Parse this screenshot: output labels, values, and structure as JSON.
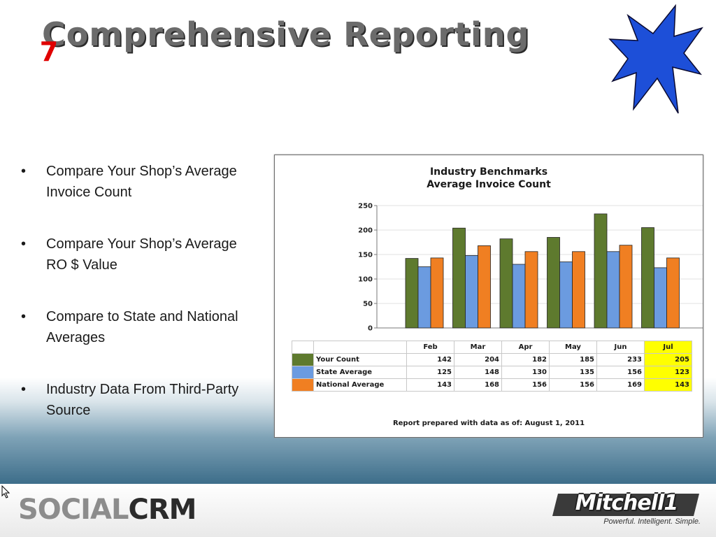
{
  "slide": {
    "title": "Comprehensive Reporting",
    "badge": "7",
    "bullets": [
      {
        "text": "Compare Your Shop’s Average Invoice Count"
      },
      {
        "text": "Compare Your Shop’s Average RO $ Value"
      },
      {
        "text": "Compare to State and National Averages"
      },
      {
        "text": "Industry Data From Third-Party Source"
      }
    ]
  },
  "chart_data": {
    "type": "bar",
    "title": "Industry Benchmarks",
    "subtitle": "Average Invoice Count",
    "categories": [
      "Feb",
      "Mar",
      "Apr",
      "May",
      "Jun",
      "Jul"
    ],
    "highlight_category": "Jul",
    "series": [
      {
        "name": "Your Count",
        "color": "#5e7a2e",
        "values": [
          142,
          204,
          182,
          185,
          233,
          205
        ]
      },
      {
        "name": "State Average",
        "color": "#6b9be0",
        "values": [
          125,
          148,
          130,
          135,
          156,
          123
        ]
      },
      {
        "name": "National Average",
        "color": "#f07f22",
        "values": [
          143,
          168,
          156,
          156,
          169,
          143
        ]
      }
    ],
    "yticks": [
      0,
      50,
      100,
      150,
      200,
      250
    ],
    "ylim": [
      0,
      250
    ],
    "grid": true,
    "note": "Report prepared with data as of: August 1, 2011"
  },
  "footer": {
    "brand_left_a": "SOCIAL",
    "brand_left_b": "CRM",
    "brand_right": "Mitchell1",
    "tagline": "Powerful. Intelligent. Simple."
  },
  "colors": {
    "highlight": "#ffff00",
    "badge_fill": "#1d4fd8",
    "badge_text": "#e00000"
  }
}
